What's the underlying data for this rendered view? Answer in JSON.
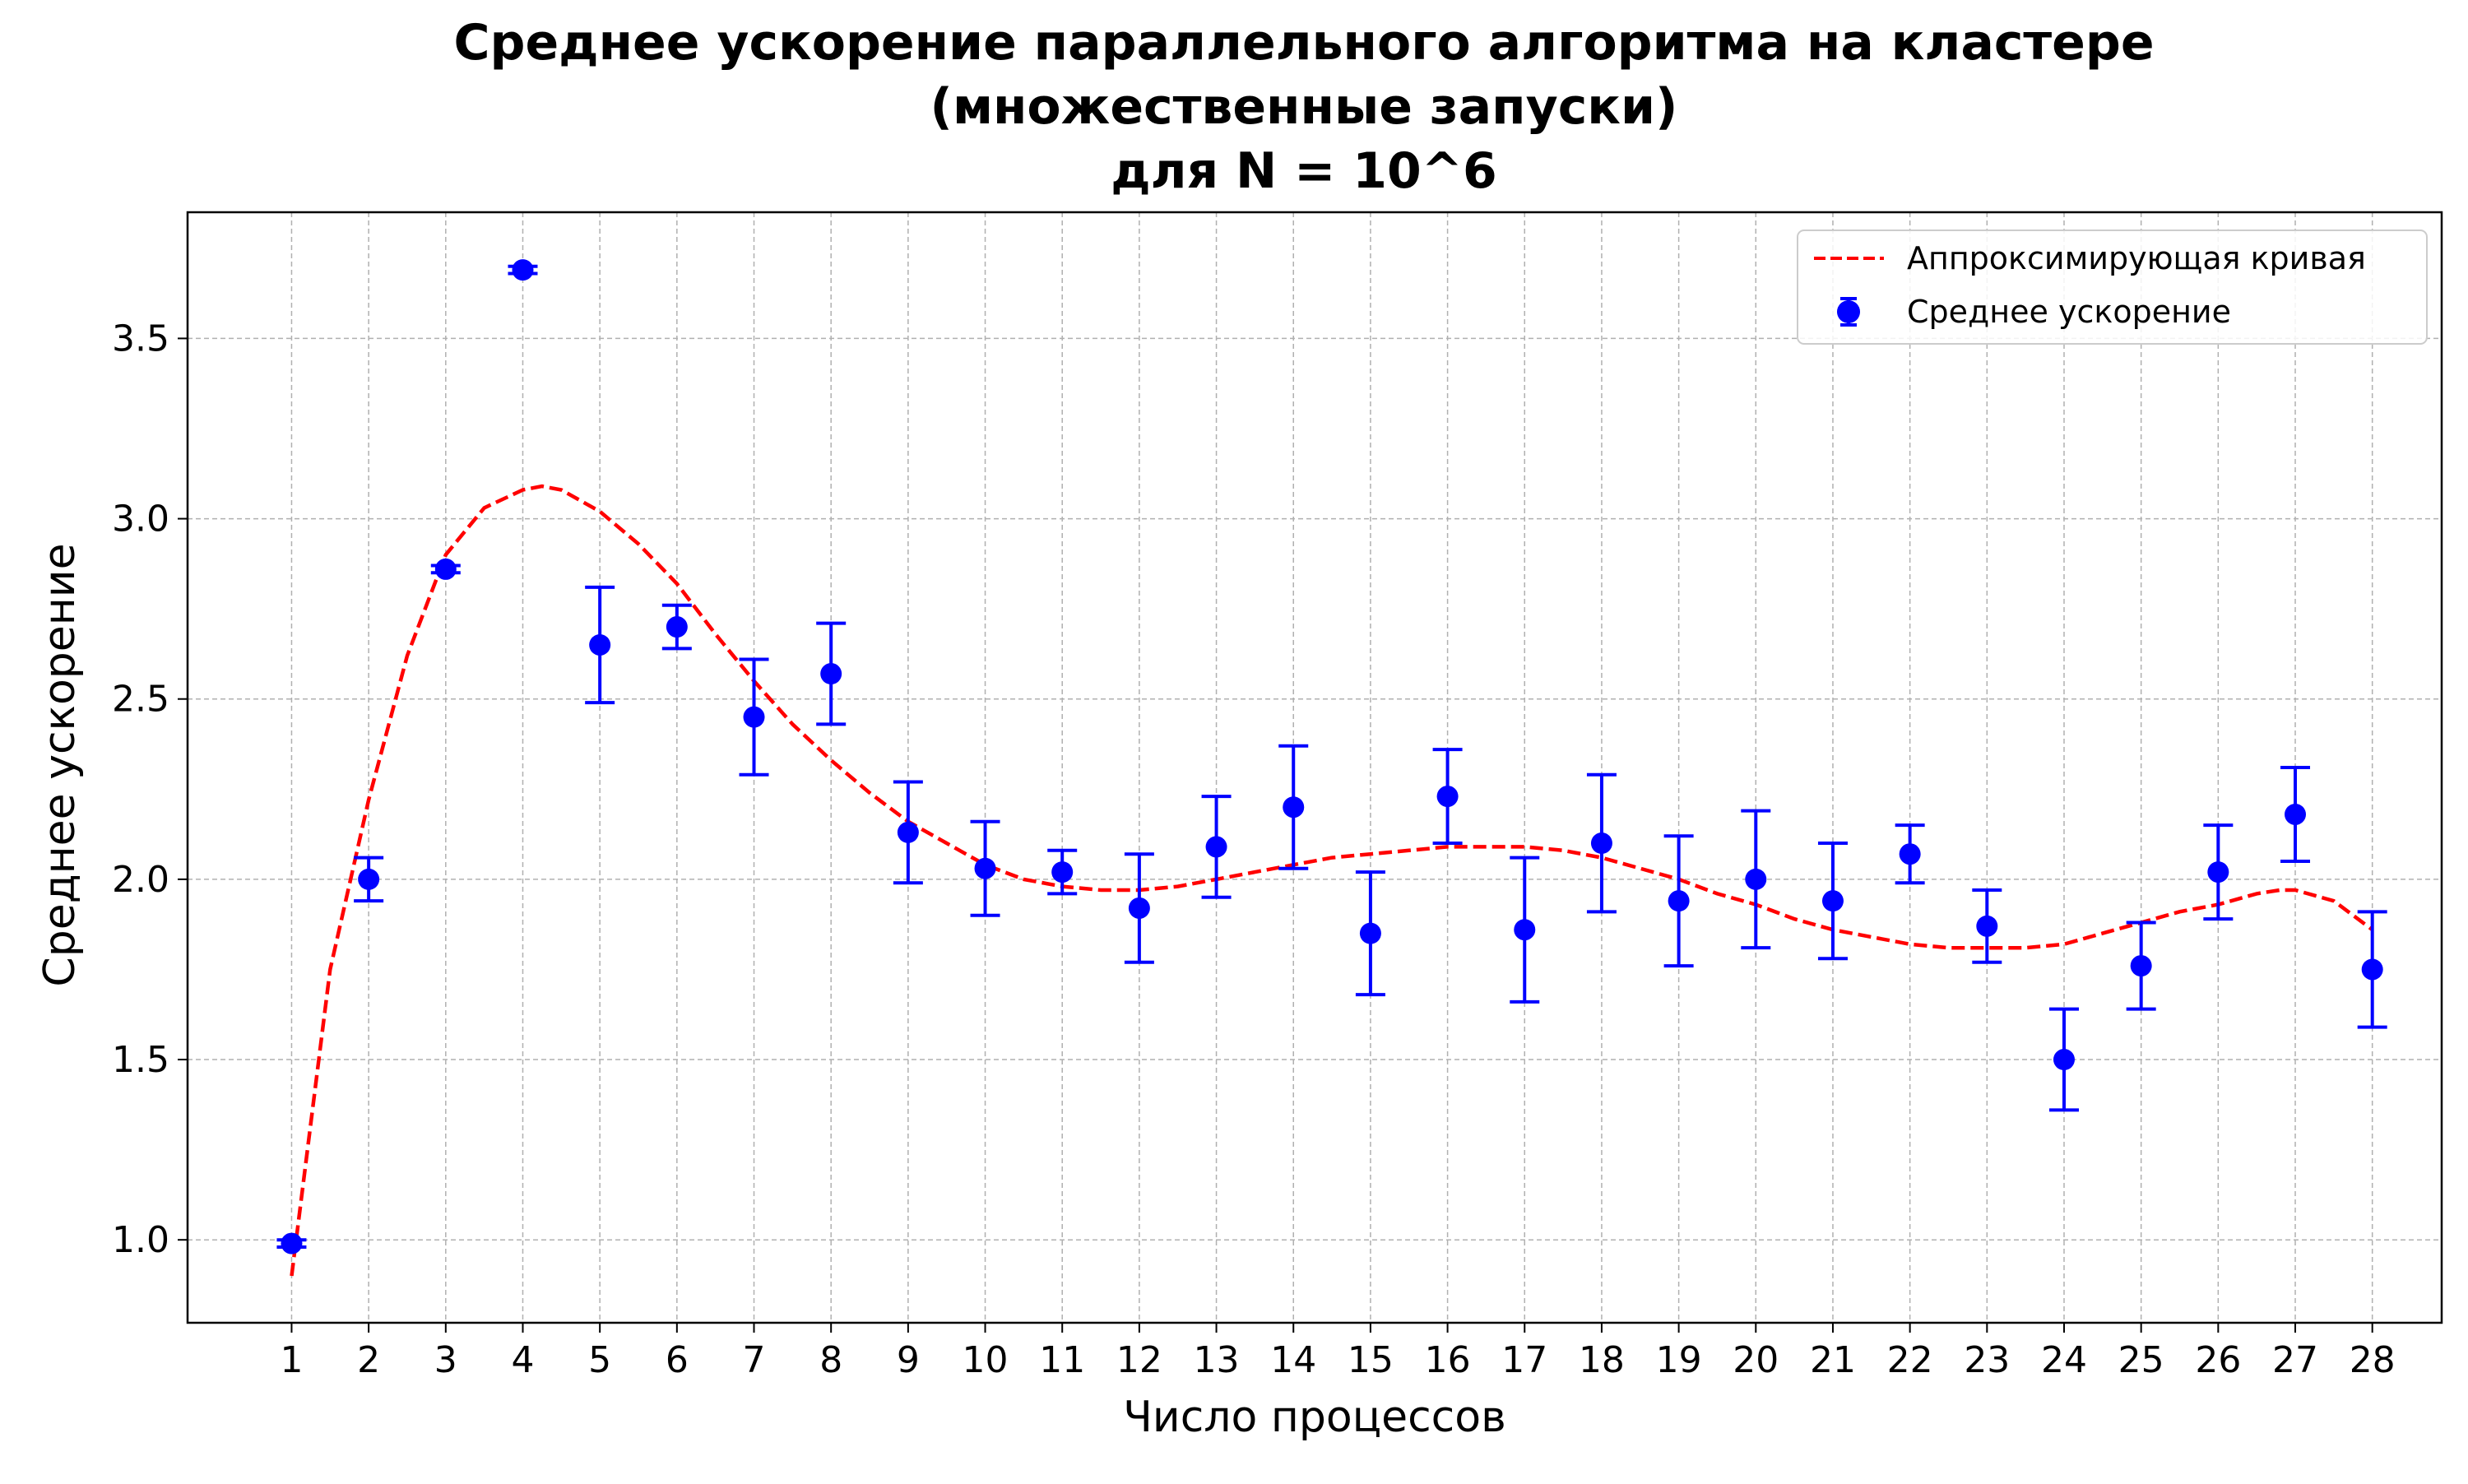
{
  "chart_data": {
    "type": "scatter",
    "title_lines": [
      "Среднее ускорение параллельного алгоритма на кластере",
      "(множественные запуски)",
      "для N = 10^6"
    ],
    "xlabel": "Число процессов",
    "ylabel": "Среднее ускорение",
    "xlim": [
      -0.35,
      28.9
    ],
    "ylim": [
      0.77,
      3.85
    ],
    "x_ticks": [
      1,
      2,
      3,
      4,
      5,
      6,
      7,
      8,
      9,
      10,
      11,
      12,
      13,
      14,
      15,
      16,
      17,
      18,
      19,
      20,
      21,
      22,
      23,
      24,
      25,
      26,
      27,
      28
    ],
    "y_ticks": [
      1.0,
      1.5,
      2.0,
      2.5,
      3.0,
      3.5
    ],
    "y_tick_labels": [
      "1.0",
      "1.5",
      "2.0",
      "2.5",
      "3.0",
      "3.5"
    ],
    "grid": true,
    "legend_position": "top-right",
    "series": [
      {
        "name": "Среднее ускорение",
        "kind": "errorbar",
        "color": "#0000ff",
        "x": [
          1,
          2,
          3,
          4,
          5,
          6,
          7,
          8,
          9,
          10,
          11,
          12,
          13,
          14,
          15,
          16,
          17,
          18,
          19,
          20,
          21,
          22,
          23,
          24,
          25,
          26,
          27,
          28
        ],
        "y": [
          0.99,
          2.0,
          2.86,
          3.69,
          2.65,
          2.7,
          2.45,
          2.57,
          2.13,
          2.03,
          2.02,
          1.92,
          2.09,
          2.2,
          1.85,
          2.23,
          1.86,
          2.1,
          1.94,
          2.0,
          1.94,
          2.07,
          1.87,
          1.5,
          1.76,
          2.02,
          2.18,
          1.75
        ],
        "yerr": [
          0.01,
          0.06,
          0.01,
          0.01,
          0.16,
          0.06,
          0.16,
          0.14,
          0.14,
          0.13,
          0.06,
          0.15,
          0.14,
          0.17,
          0.17,
          0.13,
          0.2,
          0.19,
          0.18,
          0.19,
          0.16,
          0.08,
          0.1,
          0.14,
          0.12,
          0.13,
          0.13,
          0.16
        ]
      },
      {
        "name": "Аппроксимирующая кривая",
        "kind": "line",
        "style": "dashed",
        "color": "#ff0000",
        "x": [
          1,
          1.5,
          2,
          2.5,
          3,
          3.5,
          4,
          4.25,
          4.5,
          5,
          5.5,
          6,
          6.5,
          7,
          7.5,
          8,
          8.5,
          9,
          9.5,
          10,
          10.5,
          11,
          11.5,
          12,
          12.5,
          13,
          13.5,
          14,
          14.5,
          15,
          15.5,
          16,
          16.5,
          17,
          17.5,
          18,
          18.5,
          19,
          19.5,
          20,
          20.5,
          21,
          21.5,
          22,
          22.5,
          23,
          23.5,
          24,
          24.5,
          25,
          25.5,
          26,
          26.5,
          26.8,
          27,
          27.5,
          28
        ],
        "y": [
          0.9,
          1.75,
          2.22,
          2.62,
          2.9,
          3.03,
          3.08,
          3.09,
          3.08,
          3.02,
          2.93,
          2.82,
          2.68,
          2.55,
          2.43,
          2.33,
          2.24,
          2.16,
          2.1,
          2.04,
          2.0,
          1.98,
          1.97,
          1.97,
          1.98,
          2.0,
          2.02,
          2.04,
          2.06,
          2.07,
          2.08,
          2.09,
          2.09,
          2.09,
          2.08,
          2.06,
          2.03,
          2.0,
          1.96,
          1.93,
          1.89,
          1.86,
          1.84,
          1.82,
          1.81,
          1.81,
          1.81,
          1.82,
          1.85,
          1.88,
          1.91,
          1.93,
          1.96,
          1.97,
          1.97,
          1.94,
          1.86
        ]
      }
    ]
  }
}
